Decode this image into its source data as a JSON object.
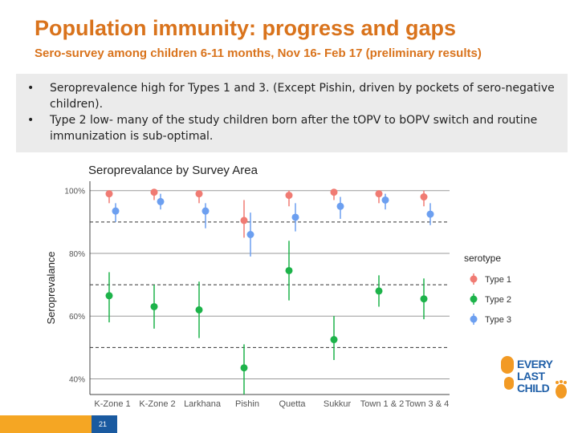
{
  "slide": {
    "title": "Population immunity: progress and gaps",
    "subtitle": "Sero-survey among children 6-11 months, Nov 16- Feb 17 (preliminary results)",
    "bullets": [
      "Seroprevalence high for Types 1 and 3. (Except Pishin, driven by pockets of sero-negative children).",
      "Type 2 low- many of the study children born after the tOPV to bOPV switch and routine immunization is sub-optimal."
    ],
    "page_number": "21",
    "logo_lines": [
      "EVERY",
      "LAST",
      "CHILD"
    ],
    "colors": {
      "title": "#d9731c",
      "bottom_bar_orange": "#f5a623",
      "bottom_bar_blue": "#1a5aa0",
      "logo_orange": "#f29a24",
      "logo_blue": "#1f5fa8"
    }
  },
  "chart_data": {
    "type": "scatter",
    "title": "Seroprevalance by Survey Area",
    "ylabel": "Seroprevalance",
    "xlabel": "",
    "ylim": [
      35,
      103
    ],
    "yticks": [
      40,
      60,
      80,
      100
    ],
    "ytick_labels": [
      "40%",
      "60%",
      "80%",
      "100%"
    ],
    "grid": "dashed at 50%, 70%, 90%",
    "legend_title": "serotype",
    "legend_position": "right",
    "categories": [
      "K-Zone 1",
      "K-Zone 2",
      "Larkhana",
      "Pishin",
      "Quetta",
      "Sukkur",
      "Town 1 & 2",
      "Town 3 & 4"
    ],
    "series": [
      {
        "name": "Type 1",
        "color": "#f07b73",
        "values": [
          99,
          99.5,
          99,
          90.5,
          98.5,
          99.5,
          99,
          98
        ],
        "lower": [
          96,
          97,
          96,
          85,
          95,
          97,
          96,
          95
        ],
        "upper": [
          100,
          100,
          100,
          97,
          100,
          100,
          100,
          100
        ]
      },
      {
        "name": "Type 2",
        "color": "#1db34a",
        "values": [
          66.5,
          63,
          62,
          43.5,
          74.5,
          52.5,
          68,
          65.5
        ],
        "lower": [
          58,
          56,
          53,
          35,
          65,
          46,
          63,
          59
        ],
        "upper": [
          74,
          70,
          71,
          51,
          84,
          60,
          73,
          72
        ]
      },
      {
        "name": "Type 3",
        "color": "#6c9ff0",
        "values": [
          93.5,
          96.5,
          93.5,
          86,
          91.5,
          95,
          97,
          92.5
        ],
        "lower": [
          90,
          94,
          88,
          79,
          87,
          91,
          94,
          89
        ],
        "upper": [
          96,
          99,
          96,
          93,
          96,
          98,
          99,
          96
        ]
      }
    ]
  }
}
